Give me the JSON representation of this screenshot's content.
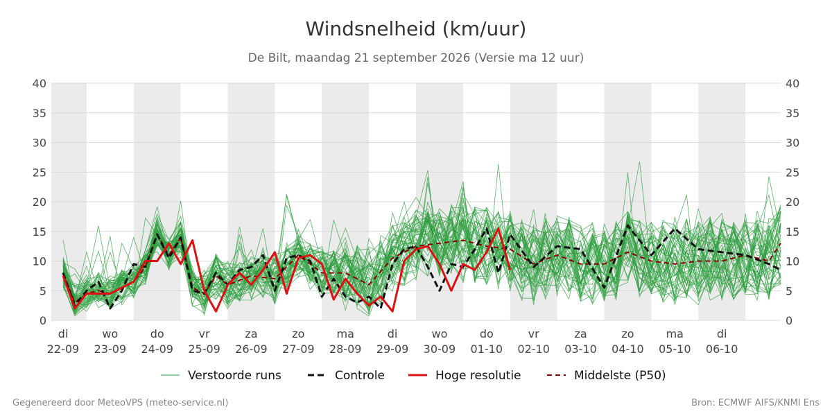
{
  "chart_data": {
    "type": "line",
    "title": "Windsnelheid (km/uur)",
    "subtitle": "De Bilt, maandag 21 september 2026 (Versie ma 12 uur)",
    "ylim": [
      0,
      40
    ],
    "yticks": [
      0,
      5,
      10,
      15,
      20,
      25,
      30,
      35,
      40
    ],
    "x_start_day": 22.25,
    "x_end_day": 37.75,
    "day_ticks": [
      {
        "day": "di",
        "date": "22-09"
      },
      {
        "day": "wo",
        "date": "23-09"
      },
      {
        "day": "do",
        "date": "24-09"
      },
      {
        "day": "vr",
        "date": "25-09"
      },
      {
        "day": "za",
        "date": "26-09"
      },
      {
        "day": "zo",
        "date": "27-09"
      },
      {
        "day": "ma",
        "date": "28-09"
      },
      {
        "day": "di",
        "date": "29-09"
      },
      {
        "day": "wo",
        "date": "30-09"
      },
      {
        "day": "do",
        "date": "01-10"
      },
      {
        "day": "vr",
        "date": "02-10"
      },
      {
        "day": "za",
        "date": "03-10"
      },
      {
        "day": "zo",
        "date": "04-10"
      },
      {
        "day": "ma",
        "date": "05-10"
      },
      {
        "day": "di",
        "date": "06-10"
      }
    ],
    "colors": {
      "ensemble": "#2e9e3e",
      "control": "#111111",
      "hires": "#dd1111",
      "median": "#8b0000",
      "shade": "#ebebeb",
      "grid": "#d9d9d9"
    },
    "legend": [
      {
        "key": "ensemble",
        "label": "Verstoorde runs"
      },
      {
        "key": "control",
        "label": "Controle"
      },
      {
        "key": "hires",
        "label": "Hoge resolutie"
      },
      {
        "key": "median",
        "label": "Middelste (P50)"
      }
    ],
    "series": [
      {
        "name": "Controle",
        "key": "control",
        "x": [
          22.5,
          22.75,
          23.0,
          23.25,
          23.5,
          23.75,
          24.0,
          24.25,
          24.5,
          24.75,
          25.0,
          25.25,
          25.5,
          25.75,
          26.0,
          26.25,
          26.5,
          26.75,
          27.0,
          27.25,
          27.5,
          27.75,
          28.0,
          28.25,
          28.5,
          28.75,
          29.0,
          29.25,
          29.5,
          29.75,
          30.0,
          30.25,
          30.5,
          30.75,
          31.0,
          31.25,
          31.5,
          31.75,
          32.0,
          32.5,
          33.0,
          33.5,
          34.0,
          34.5,
          35.0,
          35.5,
          36.0,
          36.5,
          37.0,
          37.5,
          37.75
        ],
        "values": [
          8,
          2.5,
          5,
          6.5,
          2,
          5,
          9.5,
          9,
          14.5,
          10.5,
          14,
          5,
          4.5,
          8,
          6,
          8.5,
          9,
          11,
          5,
          10.5,
          11,
          10,
          4,
          7,
          4,
          3,
          4,
          2,
          9.5,
          12,
          12.5,
          9,
          5,
          9.5,
          9,
          12,
          15.5,
          8,
          14.5,
          9,
          12.5,
          12,
          5.5,
          16,
          11,
          15.5,
          12,
          11.5,
          11,
          9.5,
          8.5
        ]
      },
      {
        "name": "Hoge resolutie",
        "key": "hires",
        "x": [
          22.5,
          22.75,
          23.0,
          23.25,
          23.5,
          23.75,
          24.0,
          24.25,
          24.5,
          24.75,
          25.0,
          25.25,
          25.5,
          25.75,
          26.0,
          26.25,
          26.5,
          26.75,
          27.0,
          27.25,
          27.5,
          27.75,
          28.0,
          28.25,
          28.5,
          28.75,
          29.0,
          29.25,
          29.5,
          29.75,
          30.0,
          30.25,
          30.5,
          30.75,
          31.0,
          31.25,
          31.5,
          31.75,
          32.0
        ],
        "values": [
          7.5,
          2,
          4.5,
          4.5,
          4.5,
          5.5,
          6.5,
          10,
          10,
          13,
          9.5,
          13.5,
          5,
          1.5,
          6,
          8,
          6,
          8.5,
          11.5,
          4.5,
          10.5,
          11,
          9.5,
          3.5,
          7,
          4.5,
          2.5,
          4,
          1.5,
          10,
          12,
          12.5,
          9.5,
          5,
          9.5,
          8.5,
          11.5,
          15.5,
          8.5
        ]
      },
      {
        "name": "Middelste (P50)",
        "key": "median",
        "x": [
          22.5,
          22.75,
          23.0,
          23.25,
          23.5,
          23.75,
          24.0,
          24.25,
          24.5,
          24.75,
          25.0,
          25.25,
          25.5,
          25.75,
          26.0,
          26.5,
          27.0,
          27.5,
          28.0,
          28.5,
          29.0,
          29.5,
          30.0,
          30.5,
          31.0,
          31.5,
          32.0,
          32.5,
          33.0,
          33.5,
          34.0,
          34.5,
          35.0,
          35.5,
          36.0,
          36.5,
          37.0,
          37.5,
          37.75
        ],
        "values": [
          8,
          3,
          4.5,
          5,
          4.5,
          5.5,
          6.5,
          9,
          14.5,
          11,
          14,
          5.5,
          4.5,
          7.5,
          6,
          7.5,
          7,
          11,
          8,
          8,
          6,
          10.5,
          12.5,
          13,
          13.5,
          12.5,
          12,
          9.5,
          11,
          9.5,
          9.5,
          11.5,
          10,
          9.5,
          10,
          10,
          11,
          10,
          13
        ]
      }
    ],
    "ensemble": {
      "name": "Verstoorde runs",
      "count": 50
    }
  },
  "footer": {
    "left": "Gegenereerd door MeteoVPS (meteo-service.nl)",
    "right": "Bron: ECMWF AIFS/KNMI Ens"
  }
}
